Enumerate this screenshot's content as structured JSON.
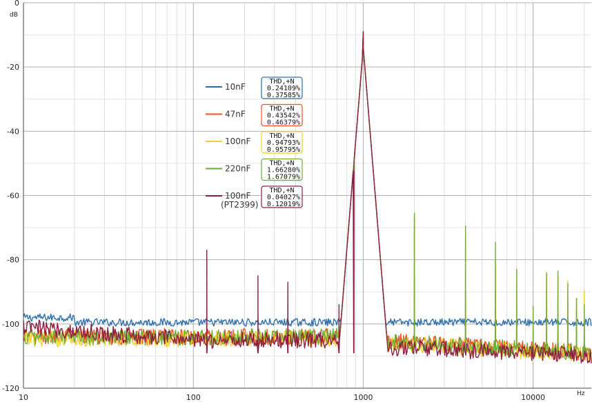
{
  "chart_data": {
    "type": "line",
    "title": "",
    "xlabel": "",
    "ylabel": "",
    "x_unit": "Hz",
    "y_unit": "dB",
    "x_scale": "log",
    "xlim": [
      10,
      22000
    ],
    "ylim": [
      -120,
      0
    ],
    "x_ticks": [
      10,
      100,
      1000,
      10000
    ],
    "x_tick_labels": [
      "10",
      "100",
      "1000",
      "10000"
    ],
    "y_ticks": [
      0,
      -20,
      -40,
      -60,
      -80,
      -100,
      -120
    ],
    "y_tick_labels": [
      "0",
      "-20",
      "-40",
      "-60",
      "-80",
      "-100",
      "-120"
    ],
    "grid": true,
    "fundamental_hz": 1000,
    "legend_position": "upper-left-center",
    "series": [
      {
        "name": "10nF",
        "color": "#2e6fad",
        "thd_title": "THD,+N",
        "thd": "0.24109%",
        "thd_n": "0.37585%",
        "noise_floor_db": -99.5,
        "fundamental_db": -9,
        "harmonics": []
      },
      {
        "name": "47nF",
        "color": "#f0521e",
        "thd_title": "THD,+N",
        "thd": "0.43542%",
        "thd_n": "0.46379%",
        "noise_floor_db": -104,
        "fundamental_db": -9,
        "harmonics": [
          [
            2000,
            -67
          ],
          [
            4000,
            -75.5
          ],
          [
            6000,
            -90
          ],
          [
            8000,
            -91.5
          ],
          [
            12000,
            -84.5
          ],
          [
            14000,
            -85
          ],
          [
            16000,
            -93.5
          ],
          [
            18000,
            -96
          ],
          [
            20000,
            -99
          ]
        ]
      },
      {
        "name": "100nF",
        "color": "#f3d02a",
        "thd_title": "THD,+N",
        "thd": "0.94793%",
        "thd_n": "0.95795%",
        "noise_floor_db": -104.5,
        "fundamental_db": -9,
        "harmonics": [
          [
            2000,
            -68
          ],
          [
            4000,
            -72
          ],
          [
            6000,
            -80
          ],
          [
            8000,
            -87
          ],
          [
            12000,
            -86.5
          ],
          [
            14000,
            -88
          ],
          [
            16000,
            -86.5
          ],
          [
            18000,
            -92
          ],
          [
            20000,
            -89.5
          ]
        ]
      },
      {
        "name": "220nF",
        "color": "#6faa38",
        "thd_title": "THD,+N",
        "thd": "1.66280%",
        "thd_n": "1.67079%",
        "noise_floor_db": -104,
        "fundamental_db": -9,
        "harmonics": [
          [
            2000,
            -65.5
          ],
          [
            4000,
            -69.5
          ],
          [
            6000,
            -74.5
          ],
          [
            8000,
            -83
          ],
          [
            10000,
            -94.5
          ],
          [
            12000,
            -84
          ],
          [
            14000,
            -83.5
          ],
          [
            16000,
            -87.5
          ],
          [
            18000,
            -92
          ],
          [
            20000,
            -94
          ]
        ]
      },
      {
        "name": "100nF\n(PT2399)",
        "color": "#8b1d3e",
        "thd_title": "THD,+N",
        "thd": "0.04027%",
        "thd_n": "0.12019%",
        "noise_floor_db": -107,
        "fundamental_db": -9,
        "harmonics": [
          [
            120,
            -77
          ],
          [
            240,
            -85
          ],
          [
            360,
            -87
          ],
          [
            720,
            -94
          ],
          [
            880,
            -79
          ]
        ]
      }
    ]
  }
}
